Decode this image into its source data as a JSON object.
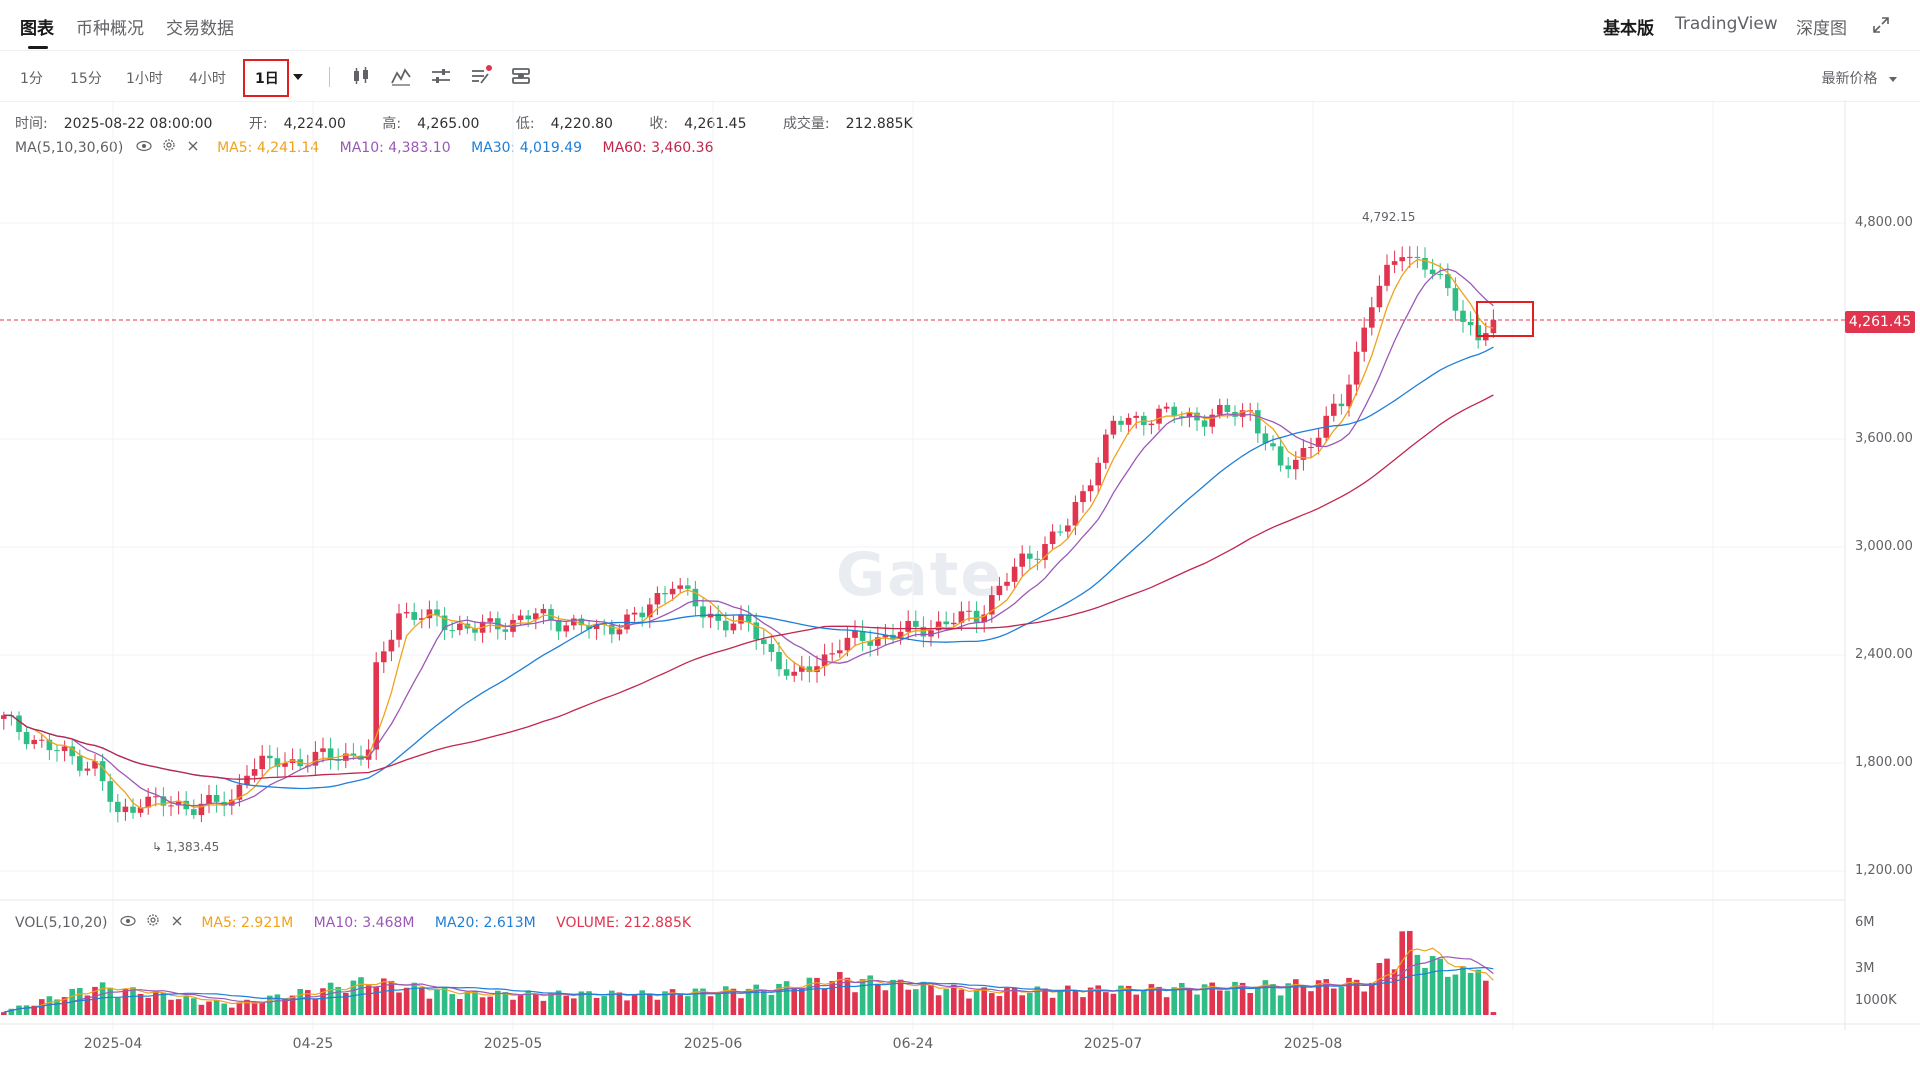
{
  "tabs": {
    "chart": "图表",
    "overview": "币种概况",
    "trading_data": "交易数据"
  },
  "right_tabs": {
    "basic": "基本版",
    "tradingview": "TradingView",
    "depth": "深度图"
  },
  "intervals": [
    "1分",
    "15分",
    "1小时",
    "4小时",
    "1日"
  ],
  "price_select": "最新价格",
  "ohlc": {
    "time_label": "时间:",
    "time": "2025-08-22 08:00:00",
    "open_label": "开:",
    "open": "4,224.00",
    "high_label": "高:",
    "high": "4,265.00",
    "low_label": "低:",
    "low": "4,220.80",
    "close_label": "收:",
    "close": "4,261.45",
    "vol_label": "成交量:",
    "vol": "212.885K"
  },
  "ma": {
    "label": "MA(5,10,30,60)",
    "ma5": "MA5: 4,241.14",
    "ma10": "MA10: 4,383.10",
    "ma30": "MA30: 4,019.49",
    "ma60": "MA60: 3,460.36"
  },
  "vol_ind": {
    "label": "VOL(5,10,20)",
    "ma5": "MA5: 2.921M",
    "ma10": "MA10: 3.468M",
    "ma20": "MA20: 2.613M",
    "volume": "VOLUME: 212.885K"
  },
  "colors": {
    "up": "#e0344f",
    "down": "#2ebd85",
    "ma5": "#f0a21c",
    "ma10": "#9b59b6",
    "ma30": "#1e7fd8",
    "ma60": "#c1264d"
  },
  "watermark": "Gate",
  "markers": {
    "high": "4,792.15",
    "low": "1,383.45"
  },
  "last_price": "4,261.45",
  "chart_data": {
    "type": "candlestick",
    "price_axis_ticks": [
      "4,800.00",
      "3,600.00",
      "3,000.00",
      "2,400.00",
      "1,800.00",
      "1,200.00"
    ],
    "volume_axis_ticks": [
      "6M",
      "3M",
      "1000K"
    ],
    "x_ticks": [
      "2025-04",
      "04-25",
      "2025-05",
      "2025-06",
      "06-24",
      "2025-07",
      "2025-08"
    ],
    "price_keypoints": [
      [
        0,
        2040
      ],
      [
        6,
        1880
      ],
      [
        12,
        1780
      ],
      [
        15,
        1500
      ],
      [
        18,
        1600
      ],
      [
        22,
        1560
      ],
      [
        30,
        1580
      ],
      [
        32,
        1780
      ],
      [
        40,
        1820
      ],
      [
        48,
        1860
      ],
      [
        49,
        2300
      ],
      [
        52,
        2640
      ],
      [
        56,
        2600
      ],
      [
        62,
        2540
      ],
      [
        70,
        2620
      ],
      [
        78,
        2540
      ],
      [
        84,
        2620
      ],
      [
        88,
        2820
      ],
      [
        92,
        2620
      ],
      [
        98,
        2560
      ],
      [
        104,
        2260
      ],
      [
        110,
        2460
      ],
      [
        120,
        2540
      ],
      [
        128,
        2620
      ],
      [
        134,
        2920
      ],
      [
        140,
        3120
      ],
      [
        146,
        3680
      ],
      [
        152,
        3740
      ],
      [
        158,
        3720
      ],
      [
        164,
        3760
      ],
      [
        168,
        3420
      ],
      [
        172,
        3580
      ],
      [
        176,
        3800
      ],
      [
        180,
        4360
      ],
      [
        184,
        4660
      ],
      [
        188,
        4520
      ],
      [
        191,
        4360
      ],
      [
        194,
        4140
      ],
      [
        196,
        4261
      ]
    ],
    "volume_keypoints": [
      [
        0,
        0.3
      ],
      [
        12,
        2.2
      ],
      [
        30,
        0.8
      ],
      [
        48,
        2.6
      ],
      [
        60,
        1.6
      ],
      [
        84,
        1.6
      ],
      [
        100,
        2.0
      ],
      [
        110,
        2.8
      ],
      [
        128,
        1.8
      ],
      [
        150,
        2.0
      ],
      [
        180,
        2.5
      ],
      [
        184,
        6.0
      ],
      [
        188,
        4.0
      ],
      [
        193,
        3.0
      ],
      [
        194,
        5.0
      ],
      [
        196,
        0.21
      ]
    ],
    "ma30_last": 4019.49,
    "ma60_last": 3460.36
  }
}
